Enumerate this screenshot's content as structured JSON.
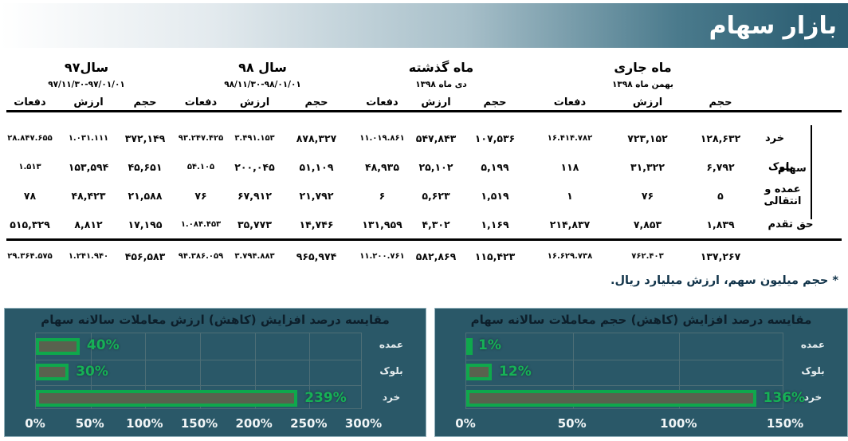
{
  "header": {
    "title": "بازار سهام"
  },
  "table": {
    "groups": [
      {
        "title": "ماه جاری",
        "subtitle": "بهمن ماه ۱۳۹۸"
      },
      {
        "title": "ماه گذشته",
        "subtitle": "دی ماه ۱۳۹۸"
      },
      {
        "title": "سال ۹۸",
        "subtitle": "۹۸/۱۱/۳۰-۹۸/۰۱/۰۱"
      },
      {
        "title": "سال۹۷",
        "subtitle": "۹۷/۱۱/۳۰-۹۷/۰۱/۰۱"
      }
    ],
    "columns": [
      "حجم",
      "ارزش",
      "دفعات"
    ],
    "group_label": "سهام",
    "rows": [
      {
        "label": "خرد",
        "values": [
          "۱۲۸,۶۳۲",
          "۷۲۳,۱۵۲",
          "۱۶.۴۱۴.۷۸۲",
          "۱۰۷,۵۳۶",
          "۵۴۷,۸۴۳",
          "۱۱.۰۱۹.۸۶۱",
          "۸۷۸,۳۲۷",
          "۳.۴۹۱.۱۵۳",
          "۹۳.۲۴۷.۴۲۵",
          "۳۷۲,۱۴۹",
          "۱.۰۳۱.۱۱۱",
          "۲۸.۸۴۷.۶۵۵"
        ]
      },
      {
        "label": "بلوک",
        "values": [
          "۶,۷۹۲",
          "۳۱,۳۲۲",
          "۱۱۸",
          "۵,۱۹۹",
          "۲۵,۱۰۲",
          "۴۸,۹۳۵",
          "۵۱,۱۰۹",
          "۲۰۰,۰۴۵",
          "۵۴.۱۰۵",
          "۴۵,۶۵۱",
          "۱۵۳,۵۹۴",
          "۱.۵۱۳"
        ]
      },
      {
        "label": "عمده و انتقالی",
        "values": [
          "۵",
          "۷۶",
          "۱",
          "۱,۵۱۹",
          "۵,۶۲۳",
          "۶",
          "۲۱,۷۹۲",
          "۶۷,۹۱۲",
          "۷۶",
          "۲۱,۵۸۸",
          "۴۸,۴۲۳",
          "۷۸"
        ]
      },
      {
        "label": "حق تقدم",
        "values": [
          "۱,۸۳۹",
          "۷,۸۵۳",
          "۲۱۴,۸۳۷",
          "۱,۱۶۹",
          "۴,۳۰۲",
          "۱۳۱,۹۵۹",
          "۱۴,۷۴۶",
          "۳۵,۷۷۳",
          "۱.۰۸۴.۴۵۳",
          "۱۷,۱۹۵",
          "۸,۸۱۲",
          "۵۱۵,۳۲۹"
        ]
      }
    ],
    "totals": [
      "۱۳۷,۲۶۷",
      "۷۶۲.۴۰۳",
      "۱۶.۶۲۹.۷۳۸",
      "۱۱۵,۴۲۳",
      "۵۸۲,۸۶۹",
      "۱۱.۲۰۰.۷۶۱",
      "۹۶۵,۹۷۴",
      "۳.۷۹۴.۸۸۳",
      "۹۴.۳۸۶.۰۵۹",
      "۴۵۶,۵۸۳",
      "۱.۲۴۱.۹۴۰",
      "۲۹.۳۶۴.۵۷۵"
    ],
    "note": "* حجم میلیون سهم، ارزش میلیارد ریال."
  },
  "chart_data": [
    {
      "type": "bar",
      "orientation": "horizontal",
      "panel": "left",
      "title": "مقایسه درصد افزایش (کاهش) ارزش معاملات سالانه سهام",
      "categories": [
        "عمده",
        "بلوک",
        "خرد"
      ],
      "values": [
        40,
        30,
        239
      ],
      "value_labels": [
        "40%",
        "30%",
        "239%"
      ],
      "xlim": [
        0,
        300
      ],
      "xticks": [
        "0%",
        "50%",
        "100%",
        "150%",
        "200%",
        "250%",
        "300%"
      ],
      "grid": true,
      "legend": "none"
    },
    {
      "type": "bar",
      "orientation": "horizontal",
      "panel": "right",
      "title": "مقایسه درصد افزایش (کاهش) حجم معاملات سالانه سهام",
      "categories": [
        "عمده",
        "بلوک",
        "خرد"
      ],
      "values": [
        1,
        12,
        136
      ],
      "value_labels": [
        "1%",
        "12%",
        "136%"
      ],
      "xlim": [
        0,
        150
      ],
      "xticks": [
        "0%",
        "50%",
        "100%",
        "150%"
      ],
      "grid": true,
      "legend": "none"
    }
  ],
  "colors": {
    "header_teal": "#2c5e72",
    "panel_bg": "#2a5868",
    "bar_green": "#0fa84c",
    "bar_inner": "#59624e",
    "label_green": "#16b156",
    "title_dark": "#0d1f2b",
    "gridline": "#4d6e76"
  }
}
